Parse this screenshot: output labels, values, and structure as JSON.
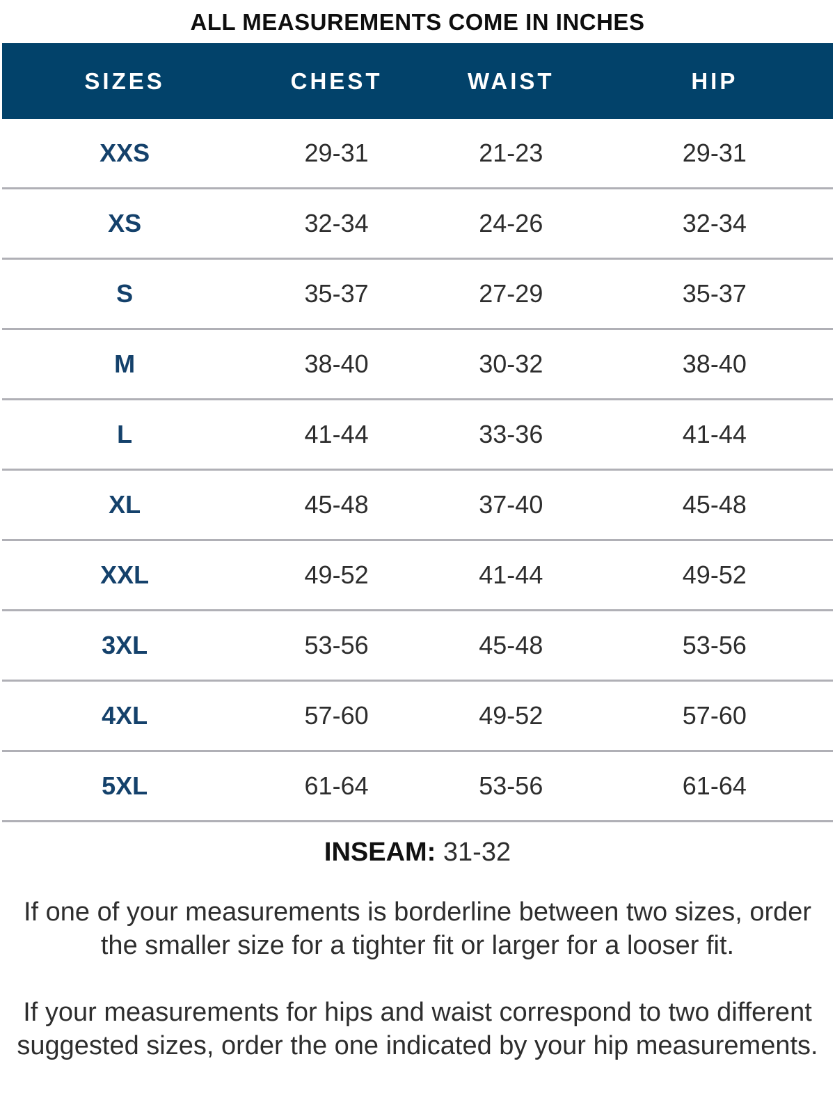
{
  "title": "ALL MEASUREMENTS COME IN INCHES",
  "table": {
    "columns": [
      "SIZES",
      "CHEST",
      "WAIST",
      "HIP"
    ],
    "rows": [
      {
        "size": "XXS",
        "chest": "29-31",
        "waist": "21-23",
        "hip": "29-31"
      },
      {
        "size": "XS",
        "chest": "32-34",
        "waist": "24-26",
        "hip": "32-34"
      },
      {
        "size": "S",
        "chest": "35-37",
        "waist": "27-29",
        "hip": "35-37"
      },
      {
        "size": "M",
        "chest": "38-40",
        "waist": "30-32",
        "hip": "38-40"
      },
      {
        "size": "L",
        "chest": "41-44",
        "waist": "33-36",
        "hip": "41-44"
      },
      {
        "size": "XL",
        "chest": "45-48",
        "waist": "37-40",
        "hip": "45-48"
      },
      {
        "size": "XXL",
        "chest": "49-52",
        "waist": "41-44",
        "hip": "49-52"
      },
      {
        "size": "3XL",
        "chest": "53-56",
        "waist": "45-48",
        "hip": "53-56"
      },
      {
        "size": "4XL",
        "chest": "57-60",
        "waist": "49-52",
        "hip": "57-60"
      },
      {
        "size": "5XL",
        "chest": "61-64",
        "waist": "53-56",
        "hip": "61-64"
      }
    ]
  },
  "inseam": {
    "label": "INSEAM:",
    "value": " 31-32"
  },
  "notes": [
    "If one of your measurements is borderline between two sizes, order the smaller size for a tighter fit or larger for a looser fit.",
    "If your measurements for hips and waist correspond to two different suggested sizes, order the one indicated by your hip measurements."
  ],
  "colors": {
    "header_background": "#02426a",
    "header_text": "#ffffff",
    "size_label_text": "#14416b",
    "value_text": "#2d2d2d",
    "divider": "#b0b0b6"
  },
  "chart_data": {
    "type": "table",
    "title": "ALL MEASUREMENTS COME IN INCHES",
    "columns": [
      "SIZES",
      "CHEST",
      "WAIST",
      "HIP"
    ],
    "rows": [
      [
        "XXS",
        "29-31",
        "21-23",
        "29-31"
      ],
      [
        "XS",
        "32-34",
        "24-26",
        "32-34"
      ],
      [
        "S",
        "35-37",
        "27-29",
        "35-37"
      ],
      [
        "M",
        "38-40",
        "30-32",
        "38-40"
      ],
      [
        "L",
        "41-44",
        "33-36",
        "41-44"
      ],
      [
        "XL",
        "45-48",
        "37-40",
        "45-48"
      ],
      [
        "XXL",
        "49-52",
        "41-44",
        "49-52"
      ],
      [
        "3XL",
        "53-56",
        "45-48",
        "53-56"
      ],
      [
        "4XL",
        "57-60",
        "49-52",
        "57-60"
      ],
      [
        "5XL",
        "61-64",
        "53-56",
        "61-64"
      ]
    ],
    "footnotes": [
      "INSEAM: 31-32",
      "If one of your measurements is borderline between two sizes, order the smaller size for a tighter fit or larger for a looser fit.",
      "If your measurements for hips and waist correspond to two different suggested sizes, order the one indicated by your hip measurements."
    ]
  }
}
